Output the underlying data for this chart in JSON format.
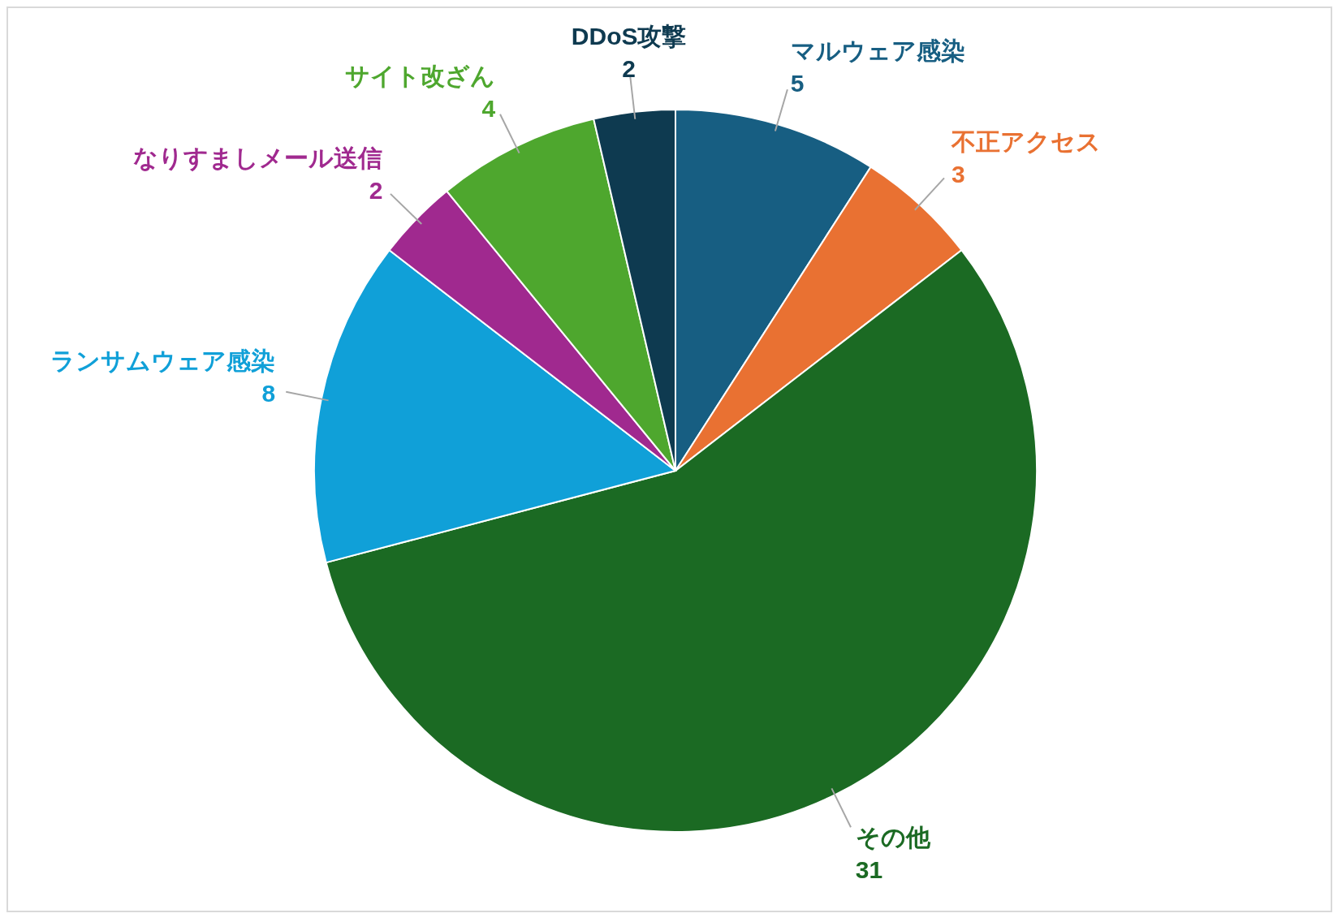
{
  "chart_data": {
    "type": "pie",
    "categories": [
      "マルウェア感染",
      "不正アクセス",
      "その他",
      "ランサムウェア感染",
      "なりすましメール送信",
      "サイト改ざん",
      "DDoS攻撃"
    ],
    "values": [
      5,
      3,
      31,
      8,
      2,
      4,
      2
    ],
    "colors": [
      "#175e82",
      "#e97132",
      "#1b6a23",
      "#10a0d8",
      "#a0298f",
      "#4ea72e",
      "#0e3a50"
    ],
    "data_labels": true,
    "legend": false
  }
}
